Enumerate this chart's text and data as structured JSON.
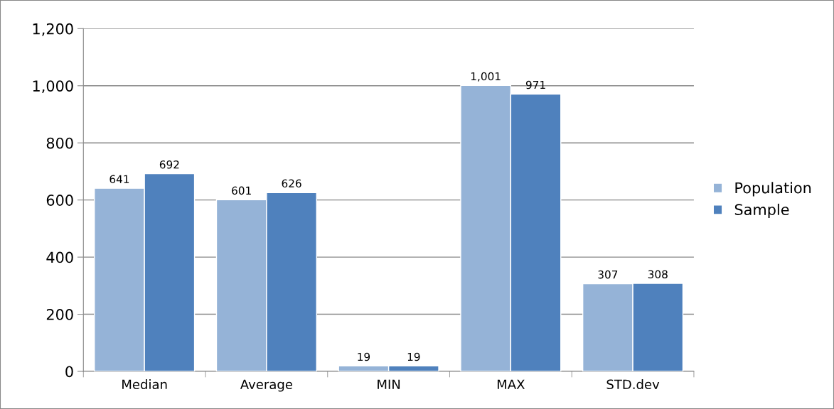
{
  "chart_data": {
    "type": "bar",
    "categories": [
      "Median",
      "Average",
      "MIN",
      "MAX",
      "STD.dev"
    ],
    "series": [
      {
        "name": "Population",
        "color": "#95b3d7",
        "values": [
          641,
          601,
          19,
          1001,
          307
        ],
        "value_labels": [
          "641",
          "601",
          "19",
          "1,001",
          "307"
        ]
      },
      {
        "name": "Sample",
        "color": "#4f81bd",
        "values": [
          692,
          626,
          19,
          971,
          308
        ],
        "value_labels": [
          "692",
          "626",
          "19",
          "971",
          "308"
        ]
      }
    ],
    "ylim": [
      0,
      1200
    ],
    "yticks": [
      0,
      200,
      400,
      600,
      800,
      {
        "value": 1000,
        "label": "1,000"
      },
      {
        "value": 1200,
        "label": "1,200"
      }
    ],
    "grid": "y",
    "legend": "right"
  }
}
